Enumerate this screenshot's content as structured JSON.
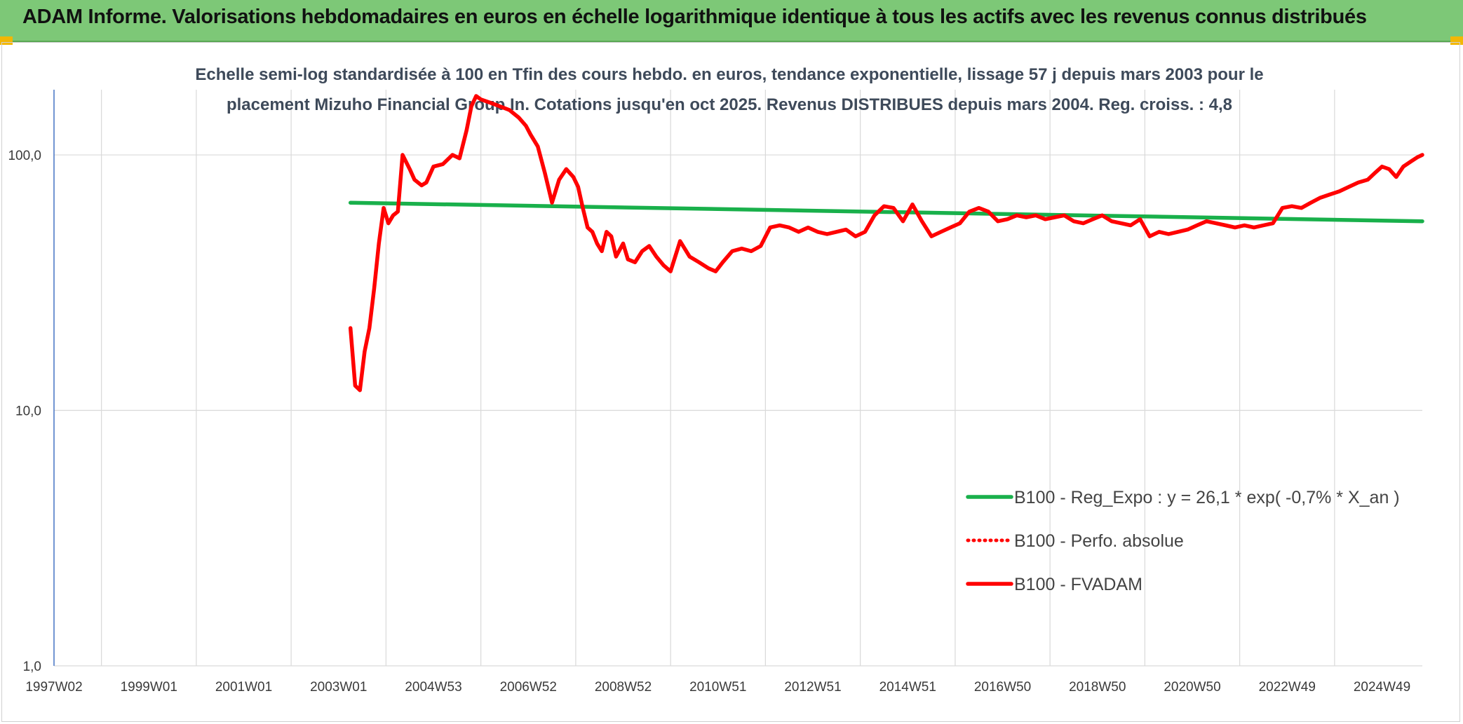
{
  "banner": {
    "title": "ADAM Informe. Valorisations hebdomadaires en euros en échelle logarithmique identique à tous les actifs avec les revenus connus distribués"
  },
  "colors": {
    "banner": "#7dc877",
    "fvadam": "#ff0000",
    "reg_expo": "#19b04b",
    "gridline": "#d9d9d9",
    "accent_corner": "#f2b705"
  },
  "chart_data": {
    "type": "line",
    "title_lines": [
      "Echelle semi-log standardisée à 100 en Tfin des cours hebdo. en euros, tendance exponentielle, lissage 57 j depuis mars 2003 pour le",
      "placement Mizuho Financial Group In. Cotations jusqu'en oct 2025. Revenus DISTRIBUES depuis mars 2004. Reg. croiss. : 4,8"
    ],
    "y_scale": "log",
    "ylim": [
      1,
      180
    ],
    "y_ticks": [
      {
        "value": 1,
        "label": "1,0"
      },
      {
        "value": 10,
        "label": "10,0"
      },
      {
        "value": 100,
        "label": "100,0"
      }
    ],
    "xlim": [
      1997.0,
      2025.85
    ],
    "x_ticks": [
      {
        "value": 1997.0,
        "label": "1997W02"
      },
      {
        "value": 1999.0,
        "label": "1999W01"
      },
      {
        "value": 2001.0,
        "label": "2001W01"
      },
      {
        "value": 2003.0,
        "label": "2003W01"
      },
      {
        "value": 2005.0,
        "label": "2004W53"
      },
      {
        "value": 2007.0,
        "label": "2006W52"
      },
      {
        "value": 2009.0,
        "label": "2008W52"
      },
      {
        "value": 2011.0,
        "label": "2010W51"
      },
      {
        "value": 2013.0,
        "label": "2012W51"
      },
      {
        "value": 2015.0,
        "label": "2014W51"
      },
      {
        "value": 2017.0,
        "label": "2016W50"
      },
      {
        "value": 2019.0,
        "label": "2018W50"
      },
      {
        "value": 2021.0,
        "label": "2020W50"
      },
      {
        "value": 2023.0,
        "label": "2022W49"
      },
      {
        "value": 2025.0,
        "label": "2024W49"
      }
    ],
    "vertical_gridlines_x": [
      1998,
      2000,
      2002,
      2004,
      2006,
      2008,
      2010,
      2012,
      2014,
      2016,
      2018,
      2020,
      2022,
      2024
    ],
    "legend_position": "right-bottom",
    "series": [
      {
        "name": "B100 - Reg_Expo : y = 26,1 * exp( -0,7% *  X_an )",
        "color": "#19b04b",
        "style": "solid",
        "x": [
          2003.25,
          2025.85
        ],
        "y": [
          65.0,
          55.0
        ]
      },
      {
        "name": "B100 - Perfo. absolue",
        "color": "#ff0000",
        "style": "dotted",
        "x": [],
        "y": []
      },
      {
        "name": "B100 - FVADAM",
        "color": "#ff0000",
        "style": "solid",
        "x": [
          2003.25,
          2003.35,
          2003.45,
          2003.55,
          2003.65,
          2003.75,
          2003.85,
          2003.95,
          2004.05,
          2004.15,
          2004.25,
          2004.35,
          2004.5,
          2004.6,
          2004.75,
          2004.85,
          2005.0,
          2005.2,
          2005.4,
          2005.55,
          2005.7,
          2005.8,
          2005.9,
          2006.0,
          2006.2,
          2006.4,
          2006.6,
          2006.8,
          2006.95,
          2007.05,
          2007.2,
          2007.35,
          2007.5,
          2007.65,
          2007.8,
          2007.95,
          2008.05,
          2008.15,
          2008.25,
          2008.35,
          2008.45,
          2008.55,
          2008.65,
          2008.75,
          2008.85,
          2009.0,
          2009.1,
          2009.25,
          2009.4,
          2009.55,
          2009.7,
          2009.85,
          2010.0,
          2010.2,
          2010.4,
          2010.6,
          2010.8,
          2010.95,
          2011.1,
          2011.3,
          2011.5,
          2011.7,
          2011.9,
          2012.1,
          2012.3,
          2012.5,
          2012.7,
          2012.9,
          2013.1,
          2013.3,
          2013.5,
          2013.7,
          2013.9,
          2014.1,
          2014.3,
          2014.5,
          2014.7,
          2014.9,
          2015.1,
          2015.3,
          2015.5,
          2015.7,
          2015.9,
          2016.1,
          2016.3,
          2016.5,
          2016.7,
          2016.9,
          2017.1,
          2017.3,
          2017.5,
          2017.7,
          2017.9,
          2018.1,
          2018.3,
          2018.5,
          2018.7,
          2018.9,
          2019.1,
          2019.3,
          2019.5,
          2019.7,
          2019.9,
          2020.1,
          2020.3,
          2020.5,
          2020.7,
          2020.9,
          2021.1,
          2021.3,
          2021.5,
          2021.7,
          2021.9,
          2022.1,
          2022.3,
          2022.5,
          2022.7,
          2022.9,
          2023.1,
          2023.3,
          2023.5,
          2023.7,
          2023.9,
          2024.1,
          2024.3,
          2024.5,
          2024.7,
          2024.85,
          2025.0,
          2025.15,
          2025.3,
          2025.45,
          2025.6,
          2025.75,
          2025.85
        ],
        "y": [
          21.0,
          12.5,
          12.0,
          17.0,
          21.0,
          30.0,
          45.0,
          62.0,
          54.0,
          58.0,
          60.0,
          100.0,
          88.0,
          80.0,
          76.0,
          78.0,
          90.0,
          92.0,
          100.0,
          97.0,
          125.0,
          155.0,
          170.0,
          165.0,
          160.0,
          155.0,
          150.0,
          140.0,
          130.0,
          120.0,
          108.0,
          85.0,
          65.0,
          80.0,
          88.0,
          82.0,
          75.0,
          62.0,
          52.0,
          50.0,
          45.0,
          42.0,
          50.0,
          48.0,
          40.0,
          45.0,
          39.0,
          38.0,
          42.0,
          44.0,
          40.0,
          37.0,
          35.0,
          46.0,
          40.0,
          38.0,
          36.0,
          35.0,
          38.0,
          42.0,
          43.0,
          42.0,
          44.0,
          52.0,
          53.0,
          52.0,
          50.0,
          52.0,
          50.0,
          49.0,
          50.0,
          51.0,
          48.0,
          50.0,
          58.0,
          63.0,
          62.0,
          55.0,
          64.0,
          55.0,
          48.0,
          50.0,
          52.0,
          54.0,
          60.0,
          62.0,
          60.0,
          55.0,
          56.0,
          58.0,
          57.0,
          58.0,
          56.0,
          57.0,
          58.0,
          55.0,
          54.0,
          56.0,
          58.0,
          55.0,
          54.0,
          53.0,
          56.0,
          48.0,
          50.0,
          49.0,
          50.0,
          51.0,
          53.0,
          55.0,
          54.0,
          53.0,
          52.0,
          53.0,
          52.0,
          53.0,
          54.0,
          62.0,
          63.0,
          62.0,
          65.0,
          68.0,
          70.0,
          72.0,
          75.0,
          78.0,
          80.0,
          85.0,
          90.0,
          88.0,
          82.0,
          90.0,
          94.0,
          98.0,
          100.0
        ]
      }
    ]
  }
}
